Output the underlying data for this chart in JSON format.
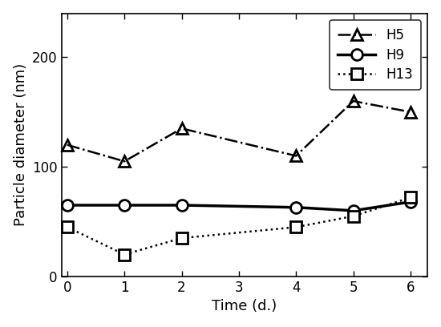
{
  "H5": {
    "x": [
      0,
      1,
      2,
      4,
      5,
      6
    ],
    "y": [
      120,
      105,
      135,
      110,
      160,
      150
    ],
    "linestyle": "dashdot",
    "marker": "^",
    "label": "H5",
    "linewidth": 1.8,
    "markersize": 10
  },
  "H9": {
    "x": [
      0,
      1,
      2,
      4,
      5,
      6
    ],
    "y": [
      65,
      65,
      65,
      63,
      60,
      68
    ],
    "linestyle": "solid",
    "marker": "o",
    "label": "H9",
    "linewidth": 2.5,
    "markersize": 10
  },
  "H13": {
    "x": [
      0,
      1,
      2,
      4,
      5,
      6
    ],
    "y": [
      45,
      20,
      35,
      45,
      55,
      72
    ],
    "linestyle": "dotted",
    "marker": "s",
    "label": "H13",
    "linewidth": 1.8,
    "markersize": 10
  },
  "xlabel": "Time (d.)",
  "ylabel": "Particle diameter (nm)",
  "xlim": [
    -0.1,
    6.3
  ],
  "ylim": [
    0,
    240
  ],
  "xticks": [
    0,
    1,
    2,
    3,
    4,
    5,
    6
  ],
  "yticks": [
    0,
    100,
    200
  ],
  "color": "black",
  "legend_loc": "upper right",
  "figsize": [
    5.5,
    4.08
  ],
  "dpi": 100
}
